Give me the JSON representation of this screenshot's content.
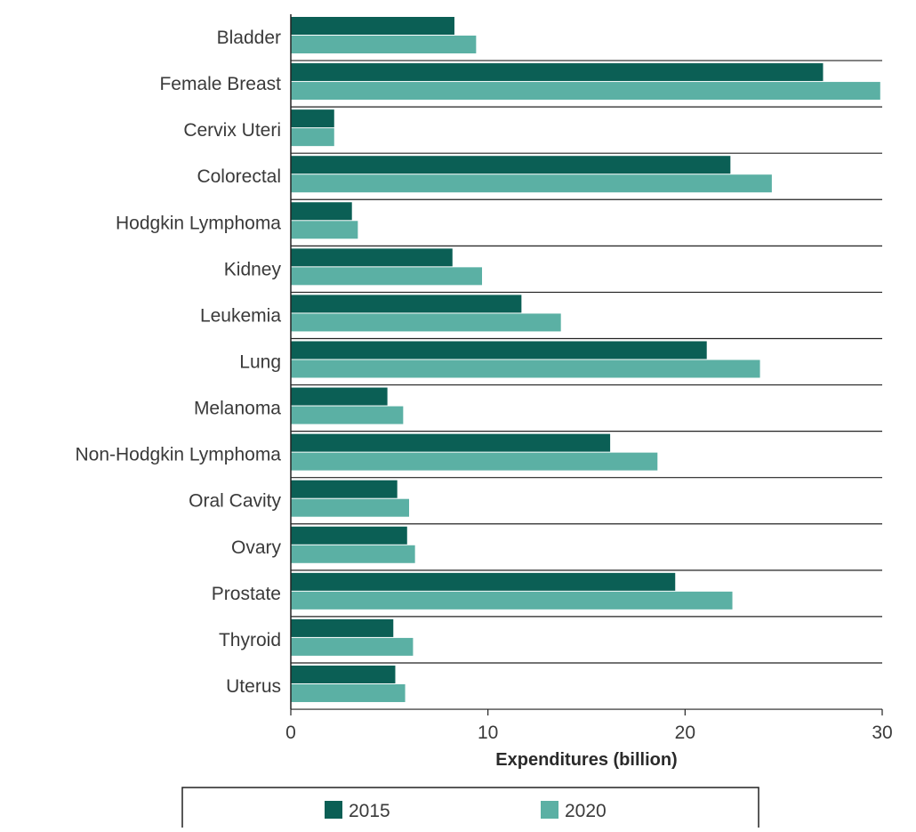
{
  "chart_data": {
    "type": "bar",
    "orientation": "horizontal",
    "title": "",
    "xlabel": "Expenditures (billion)",
    "ylabel": "",
    "xlim": [
      0,
      30
    ],
    "xticks": [
      "0",
      "10",
      "20",
      "30"
    ],
    "grid": false,
    "legend_position": "bottom",
    "categories": [
      "Bladder",
      "Female Breast",
      "Cervix Uteri",
      "Colorectal",
      "Hodgkin Lymphoma",
      "Kidney",
      "Leukemia",
      "Lung",
      "Melanoma",
      "Non-Hodgkin Lymphoma",
      "Oral Cavity",
      "Ovary",
      "Prostate",
      "Thyroid",
      "Uterus"
    ],
    "series": [
      {
        "name": "2015",
        "color": "#0b5f55",
        "values": [
          8.3,
          27.0,
          2.2,
          22.3,
          3.1,
          8.2,
          11.7,
          21.1,
          4.9,
          16.2,
          5.4,
          5.9,
          19.5,
          5.2,
          5.3
        ]
      },
      {
        "name": "2020",
        "color": "#5bb0a4",
        "values": [
          9.4,
          29.9,
          2.2,
          24.4,
          3.4,
          9.7,
          13.7,
          23.8,
          5.7,
          18.6,
          6.0,
          6.3,
          22.4,
          6.2,
          5.8
        ]
      }
    ]
  }
}
